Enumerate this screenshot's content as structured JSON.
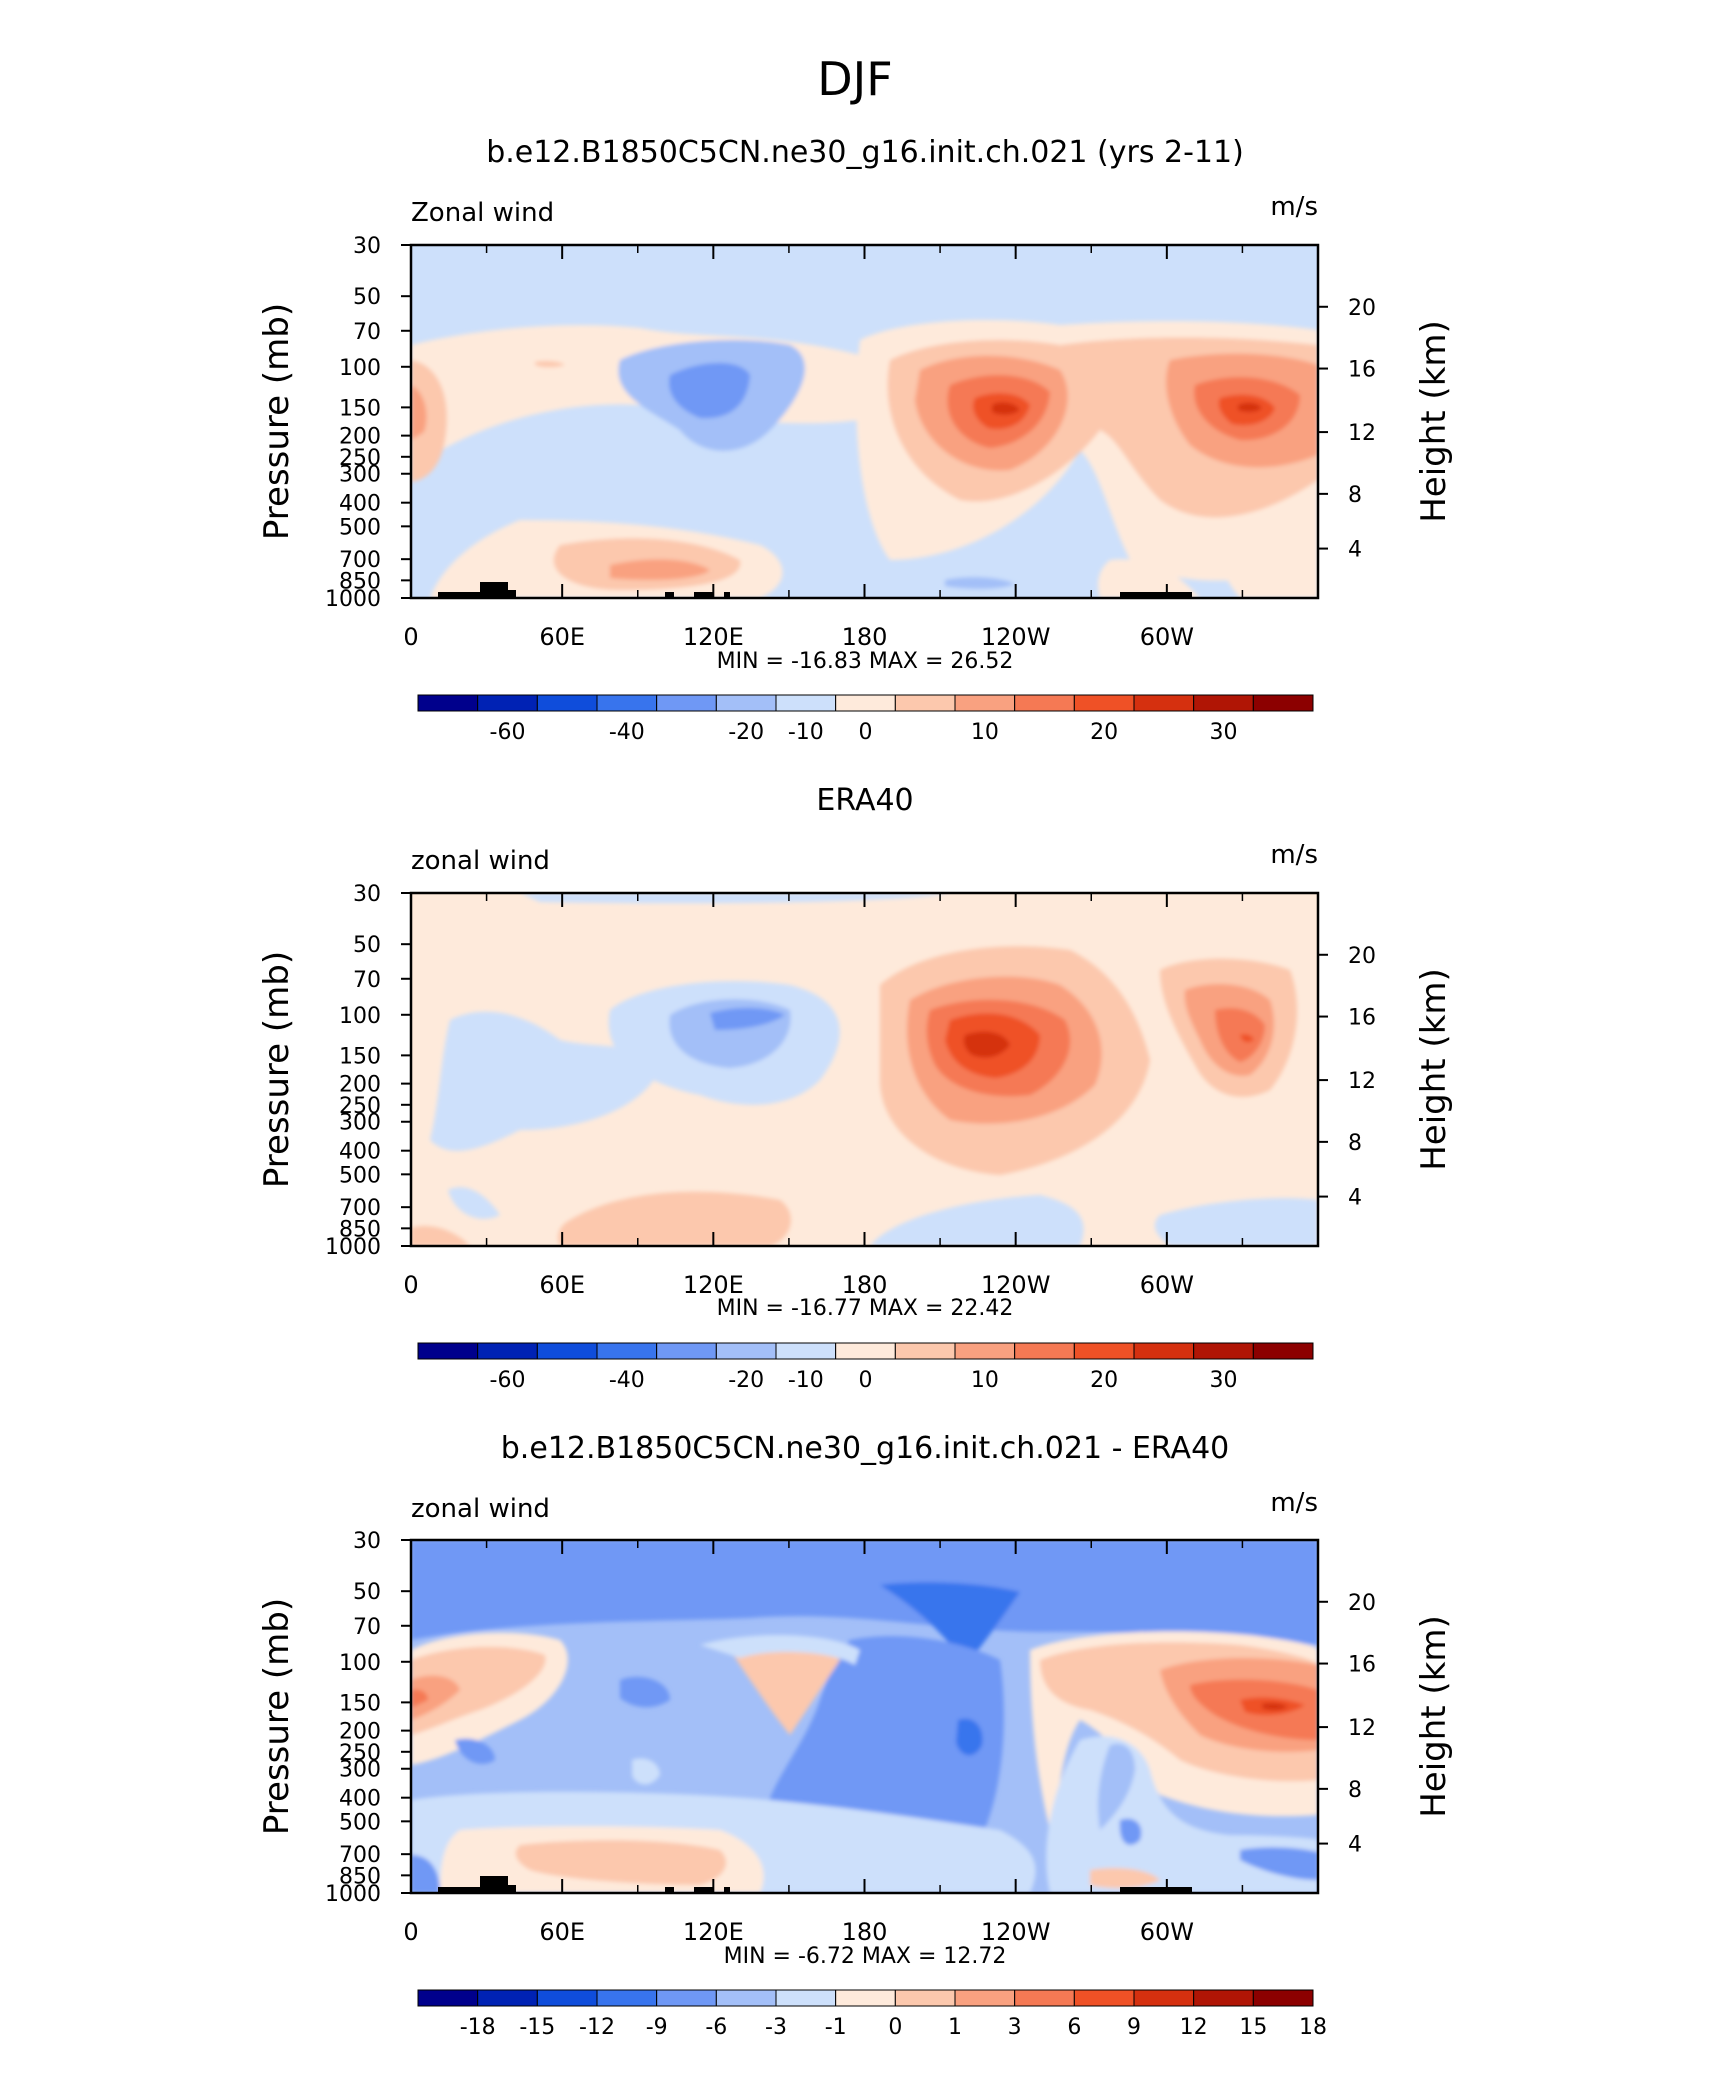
{
  "page_title": "DJF",
  "chart_data": [
    {
      "type": "heatmap",
      "title": "b.e12.B1850C5CN.ne30_g16.init.ch.021 (yrs 2-11)",
      "left_label": "Zonal wind",
      "right_label": "m/s",
      "ylabel": "Pressure (mb)",
      "ylabel_right": "Height (km)",
      "x_ticks": [
        "0",
        "60E",
        "120E",
        "180",
        "120W",
        "60W"
      ],
      "y_ticks": [
        "30",
        "50",
        "70",
        "100",
        "150",
        "200",
        "250",
        "300",
        "400",
        "500",
        "700",
        "850",
        "1000"
      ],
      "y_ticks_right": [
        "20",
        "16",
        "12",
        "8",
        "4"
      ],
      "stats": {
        "min_label": "MIN =",
        "min": "-16.83",
        "max_label": "MAX =",
        "max": "26.52"
      },
      "colorbar_labels": [
        "-60",
        "-40",
        "-20",
        "-10",
        "0",
        "10",
        "20",
        "30"
      ]
    },
    {
      "type": "heatmap",
      "title": "ERA40",
      "left_label": "zonal wind",
      "right_label": "m/s",
      "ylabel": "Pressure (mb)",
      "ylabel_right": "Height (km)",
      "x_ticks": [
        "0",
        "60E",
        "120E",
        "180",
        "120W",
        "60W"
      ],
      "y_ticks": [
        "30",
        "50",
        "70",
        "100",
        "150",
        "200",
        "250",
        "300",
        "400",
        "500",
        "700",
        "850",
        "1000"
      ],
      "y_ticks_right": [
        "20",
        "16",
        "12",
        "8",
        "4"
      ],
      "stats": {
        "min_label": "MIN =",
        "min": "-16.77",
        "max_label": "MAX =",
        "max": "22.42"
      },
      "colorbar_labels": [
        "-60",
        "-40",
        "-20",
        "-10",
        "0",
        "10",
        "20",
        "30"
      ]
    },
    {
      "type": "heatmap",
      "title": "b.e12.B1850C5CN.ne30_g16.init.ch.021 - ERA40",
      "left_label": "zonal wind",
      "right_label": "m/s",
      "ylabel": "Pressure (mb)",
      "ylabel_right": "Height (km)",
      "x_ticks": [
        "0",
        "60E",
        "120E",
        "180",
        "120W",
        "60W"
      ],
      "y_ticks": [
        "30",
        "50",
        "70",
        "100",
        "150",
        "200",
        "250",
        "300",
        "400",
        "500",
        "700",
        "850",
        "1000"
      ],
      "y_ticks_right": [
        "20",
        "16",
        "12",
        "8",
        "4"
      ],
      "stats": {
        "min_label": "MIN =",
        "min": "-6.72",
        "max_label": "MAX =",
        "max": "12.72"
      },
      "colorbar_labels": [
        "-18",
        "-15",
        "-12",
        "-9",
        "-6",
        "-3",
        "-1",
        "0",
        "1",
        "3",
        "6",
        "9",
        "12",
        "15",
        "18"
      ]
    }
  ],
  "palette": [
    "#00008c",
    "#0022b4",
    "#0f4ddb",
    "#3874ed",
    "#6f98f5",
    "#a3bff8",
    "#cde0fb",
    "#feeadb",
    "#fcc8ad",
    "#f9a180",
    "#f57954",
    "#ef5126",
    "#d5300f",
    "#b01505",
    "#8c0000"
  ]
}
